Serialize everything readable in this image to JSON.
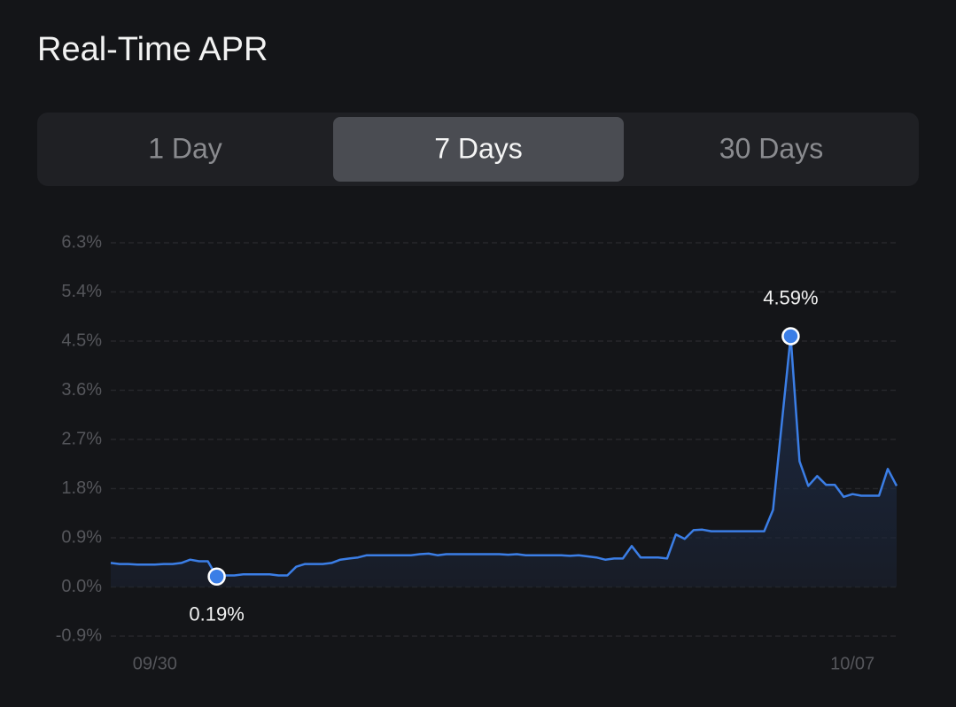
{
  "header": {
    "title": "Real-Time APR"
  },
  "tabs": {
    "items": [
      "1 Day",
      "7 Days",
      "30 Days"
    ],
    "active": 1
  },
  "chart_data": {
    "type": "line",
    "categories": [
      null,
      null,
      null,
      null,
      null,
      "09/30",
      null,
      null,
      null,
      null,
      null,
      null,
      null,
      null,
      null,
      null,
      null,
      null,
      null,
      null,
      null,
      null,
      null,
      null,
      null,
      null,
      null,
      null,
      null,
      null,
      null,
      null,
      null,
      null,
      null,
      null,
      null,
      null,
      null,
      null,
      null,
      null,
      null,
      null,
      null,
      null,
      null,
      null,
      null,
      null,
      null,
      null,
      null,
      null,
      null,
      null,
      null,
      null,
      null,
      null,
      null,
      null,
      null,
      null,
      null,
      null,
      null,
      null,
      null,
      null,
      null,
      null,
      null,
      null,
      null,
      null,
      null,
      null,
      null,
      null,
      null,
      null,
      null,
      null,
      "10/07",
      null,
      null,
      null,
      null,
      null
    ],
    "values": [
      0.44,
      0.42,
      0.42,
      0.41,
      0.41,
      0.41,
      0.42,
      0.42,
      0.44,
      0.5,
      0.47,
      0.47,
      0.19,
      0.21,
      0.21,
      0.23,
      0.23,
      0.23,
      0.23,
      0.21,
      0.21,
      0.37,
      0.42,
      0.42,
      0.42,
      0.44,
      0.5,
      0.52,
      0.54,
      0.58,
      0.58,
      0.58,
      0.58,
      0.58,
      0.58,
      0.6,
      0.61,
      0.58,
      0.6,
      0.6,
      0.6,
      0.6,
      0.6,
      0.6,
      0.6,
      0.59,
      0.6,
      0.58,
      0.58,
      0.58,
      0.58,
      0.58,
      0.57,
      0.58,
      0.56,
      0.54,
      0.5,
      0.52,
      0.52,
      0.75,
      0.54,
      0.54,
      0.54,
      0.52,
      0.96,
      0.88,
      1.04,
      1.05,
      1.02,
      1.02,
      1.02,
      1.02,
      1.02,
      1.02,
      1.02,
      1.41,
      3.0,
      4.59,
      2.3,
      1.85,
      2.03,
      1.87,
      1.87,
      1.65,
      1.7,
      1.67,
      1.67,
      1.67,
      2.16,
      1.85
    ],
    "value_labels": [
      null,
      null,
      null,
      null,
      null,
      null,
      null,
      null,
      null,
      null,
      null,
      null,
      "0.19%",
      null,
      null,
      null,
      null,
      null,
      null,
      null,
      null,
      null,
      null,
      null,
      null,
      null,
      null,
      null,
      null,
      null,
      null,
      null,
      null,
      null,
      null,
      null,
      null,
      null,
      null,
      null,
      null,
      null,
      null,
      null,
      null,
      null,
      null,
      null,
      null,
      null,
      null,
      null,
      null,
      null,
      null,
      null,
      null,
      null,
      null,
      null,
      null,
      null,
      null,
      null,
      null,
      null,
      null,
      null,
      null,
      null,
      null,
      null,
      null,
      null,
      null,
      null,
      null,
      "4.59%",
      null,
      null,
      null,
      null,
      null,
      null,
      null,
      null,
      null,
      null,
      null,
      null
    ],
    "color": "#3b7ee6",
    "ylim": [
      -0.9,
      6.3
    ],
    "yticks": [
      {
        "value": -0.9,
        "label": "-0.9%"
      },
      {
        "value": 0,
        "label": "0.0%"
      },
      {
        "value": 0.9,
        "label": "0.9%"
      },
      {
        "value": 1.8,
        "label": "1.8%"
      },
      {
        "value": 2.7,
        "label": "2.7%"
      },
      {
        "value": 3.6,
        "label": "3.6%"
      },
      {
        "value": 4.5,
        "label": "4.5%"
      },
      {
        "value": 5.4,
        "label": "5.4%"
      },
      {
        "value": 6.3,
        "label": "6.3%"
      }
    ],
    "grid": true
  }
}
